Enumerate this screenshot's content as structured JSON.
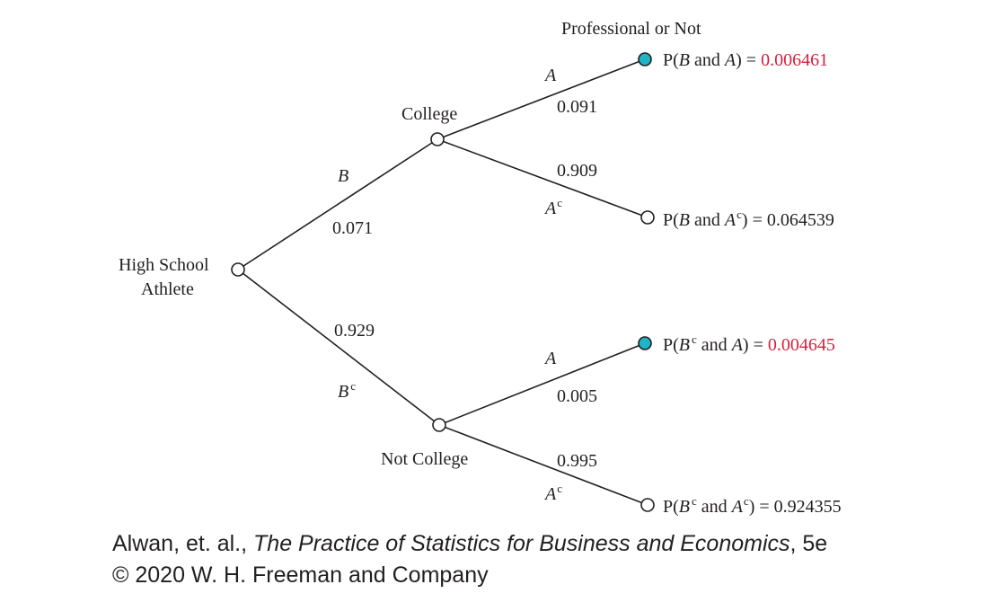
{
  "header": "Professional or Not",
  "root": {
    "line1": "High School",
    "line2": "Athlete"
  },
  "college": {
    "label": "College",
    "event": "B",
    "prob": "0.071",
    "pro": {
      "event": "A",
      "prob": "0.091",
      "result": {
        "prefix": "P(",
        "e1": "B",
        "sup1": "",
        "and": " and ",
        "e2": "A",
        "sup2": "",
        "suffix": ") = ",
        "value": "0.006461"
      }
    },
    "notpro": {
      "event": "A",
      "sup": "c",
      "prob": "0.909",
      "result": {
        "prefix": "P(",
        "e1": "B",
        "sup1": "",
        "and": " and ",
        "e2": "A",
        "sup2": "c",
        "suffix": ") = ",
        "value": "0.064539"
      }
    }
  },
  "notcollege": {
    "label": "Not College",
    "event": "B",
    "sup": "c",
    "prob": "0.929",
    "pro": {
      "event": "A",
      "prob": "0.005",
      "result": {
        "prefix": "P(",
        "e1": "B",
        "sup1": "c",
        "and": " and ",
        "e2": "A",
        "sup2": "",
        "suffix": ") = ",
        "value": "0.004645"
      }
    },
    "notpro": {
      "event": "A",
      "sup": "c",
      "prob": "0.995",
      "result": {
        "prefix": "P(",
        "e1": "B",
        "sup1": "c",
        "and": " and ",
        "e2": "A",
        "sup2": "c",
        "suffix": ") = ",
        "value": "0.924355"
      }
    }
  },
  "credit": {
    "authors": "Alwan, et. al., ",
    "book": "The Practice of Statistics for Business and Economics",
    "edition": ", 5e",
    "line2": "© 2020 W. H. Freeman and Company"
  },
  "colors": {
    "highlight_node": "#1fb5c7",
    "highlight_text": "#d6203d",
    "ink": "#231f20"
  }
}
